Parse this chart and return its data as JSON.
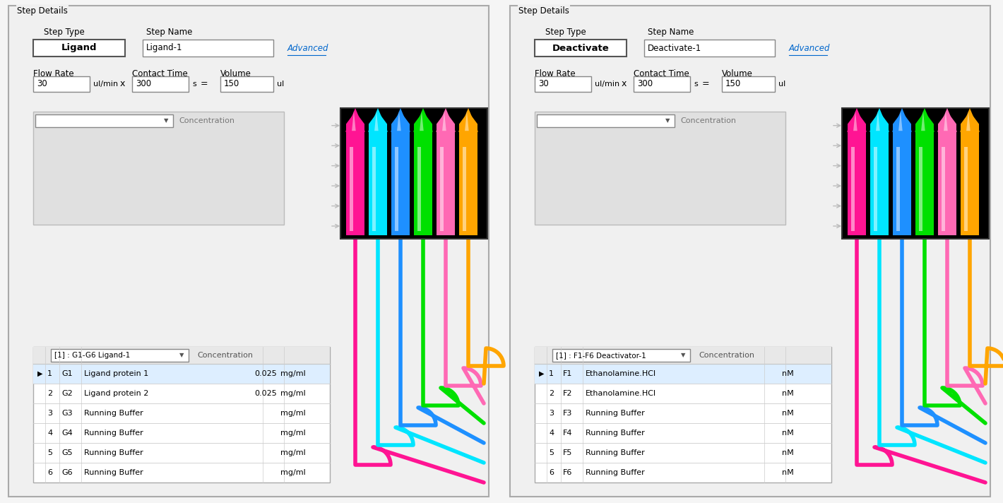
{
  "bg_color": "#f5f5f5",
  "panel_bg": "#f0f0f0",
  "panel_border": "#aaaaaa",
  "input_bg": "#ffffff",
  "gray_area_bg": "#e0e0e0",
  "advanced_color": "#0066cc",
  "text_color": "#000000",
  "panels": [
    {
      "title": "Step Details",
      "step_type_value": "Ligand",
      "step_name_value": "Ligand-1",
      "flow_rate": "30",
      "contact_time": "300",
      "volume": "150",
      "dropdown_label": "[1] : G1-G6 Ligand-1",
      "table_rows": [
        {
          "num": "1",
          "id": "G1",
          "name": "Ligand protein 1",
          "conc": "0.025",
          "unit": "mg/ml",
          "selected": true
        },
        {
          "num": "2",
          "id": "G2",
          "name": "Ligand protein 2",
          "conc": "0.025",
          "unit": "mg/ml",
          "selected": false
        },
        {
          "num": "3",
          "id": "G3",
          "name": "Running Buffer",
          "conc": "",
          "unit": "mg/ml",
          "selected": false
        },
        {
          "num": "4",
          "id": "G4",
          "name": "Running Buffer",
          "conc": "",
          "unit": "mg/ml",
          "selected": false
        },
        {
          "num": "5",
          "id": "G5",
          "name": "Running Buffer",
          "conc": "",
          "unit": "mg/ml",
          "selected": false
        },
        {
          "num": "6",
          "id": "G6",
          "name": "Running Buffer",
          "conc": "",
          "unit": "mg/ml",
          "selected": false
        }
      ],
      "tube_colors": [
        "#ff1493",
        "#00e5ff",
        "#1e90ff",
        "#00e000",
        "#ff69b4",
        "#ffa500"
      ],
      "tube_colors_dark": [
        "#cc0066",
        "#00aacc",
        "#0055cc",
        "#007700",
        "#cc3399",
        "#cc7700"
      ]
    },
    {
      "title": "Step Details",
      "step_type_value": "Deactivate",
      "step_name_value": "Deactivate-1",
      "flow_rate": "30",
      "contact_time": "300",
      "volume": "150",
      "dropdown_label": "[1] : F1-F6 Deactivator-1",
      "table_rows": [
        {
          "num": "1",
          "id": "F1",
          "name": "Ethanolamine.HCl",
          "conc": "",
          "unit": "nM",
          "selected": true
        },
        {
          "num": "2",
          "id": "F2",
          "name": "Ethanolamine.HCl",
          "conc": "",
          "unit": "nM",
          "selected": false
        },
        {
          "num": "3",
          "id": "F3",
          "name": "Running Buffer",
          "conc": "",
          "unit": "nM",
          "selected": false
        },
        {
          "num": "4",
          "id": "F4",
          "name": "Running Buffer",
          "conc": "",
          "unit": "nM",
          "selected": false
        },
        {
          "num": "5",
          "id": "F5",
          "name": "Running Buffer",
          "conc": "",
          "unit": "nM",
          "selected": false
        },
        {
          "num": "6",
          "id": "F6",
          "name": "Running Buffer",
          "conc": "",
          "unit": "nM",
          "selected": false
        }
      ],
      "tube_colors": [
        "#ff1493",
        "#00e5ff",
        "#1e90ff",
        "#00e000",
        "#ff69b4",
        "#ffa500"
      ],
      "tube_colors_dark": [
        "#cc0066",
        "#00aacc",
        "#0055cc",
        "#007700",
        "#cc3399",
        "#cc7700"
      ]
    }
  ]
}
